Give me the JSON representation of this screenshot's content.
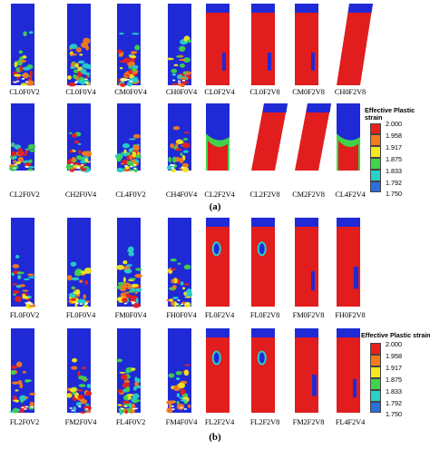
{
  "panels": [
    {
      "id": "a",
      "caption": "(a)",
      "rows": [
        {
          "labels": [
            "CL0F0V2",
            "CL0F0V4",
            "CM0F0V4",
            "CH0F0V4",
            "CL0F2V4",
            "CL0F2V8",
            "CM0F2V8",
            "CH0F2V8"
          ],
          "kinds": [
            "scatter",
            "scatter",
            "scatter",
            "scatter",
            "red",
            "red",
            "red",
            "red-tilt"
          ]
        },
        {
          "labels": [
            "CL2F0V2",
            "CH2F0V4",
            "CL4F0V2",
            "CH4F0V4",
            "CL2F2V4",
            "CL2F2V8",
            "CM2F2V8",
            "CL4F2V4"
          ],
          "kinds": [
            "scatter",
            "scatter",
            "scatter",
            "scatter",
            "band",
            "red-tilt",
            "red-tilt",
            "band"
          ]
        }
      ],
      "legend": {
        "title_line1": "Effective Plastic",
        "title_line2": "strain",
        "ticks": [
          "2.000",
          "1.958",
          "1.917",
          "1.875",
          "1.833",
          "1.792",
          "1.750"
        ]
      }
    },
    {
      "id": "b",
      "caption": "(b)",
      "rows": [
        {
          "labels": [
            "FL0F0V2",
            "FL0F0V4",
            "FM0F0V4",
            "FH0F0V4",
            "FL0F2V4",
            "FL0F2V8",
            "FM0F2V8",
            "FH0F2V8"
          ],
          "kinds": [
            "scatter",
            "scatter",
            "scatter",
            "scatter",
            "red-blob",
            "red-blob",
            "red",
            "red-bend"
          ]
        },
        {
          "labels": [
            "FL2F0V2",
            "FM2F0V4",
            "FL4F0V2",
            "FM4F0V4",
            "FL2F2V4",
            "FL2F2V8",
            "FM2F2V8",
            "FL4F2V4"
          ],
          "kinds": [
            "scatter",
            "scatter",
            "scatter",
            "scatter",
            "red-blob",
            "red-blob",
            "red-bend",
            "red"
          ]
        }
      ],
      "legend": {
        "title_line1": "Effective Plastic strain",
        "title_line2": "",
        "ticks": [
          "2.000",
          "1.958",
          "1.917",
          "1.875",
          "1.833",
          "1.792",
          "1.750"
        ]
      }
    }
  ],
  "colors": {
    "palette": [
      "#e8201b",
      "#f47a1e",
      "#f4e91e",
      "#41d24b",
      "#27d0c8",
      "#2a6fde",
      "#1522d8"
    ],
    "blue": "#1f2ad6",
    "red": "#e11d1d"
  }
}
